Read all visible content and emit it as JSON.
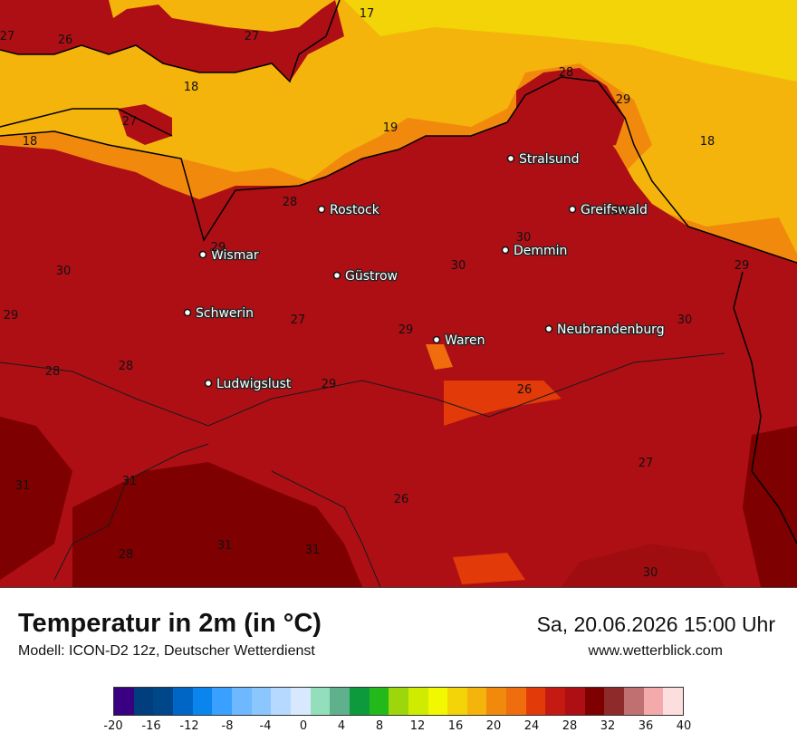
{
  "map": {
    "cities": [
      {
        "name": "Stralsund"
      },
      {
        "name": "Rostock"
      },
      {
        "name": "Greifswald"
      },
      {
        "name": "Wismar"
      },
      {
        "name": "Demmin"
      },
      {
        "name": "Güstrow"
      },
      {
        "name": "Schwerin"
      },
      {
        "name": "Neubrandenburg"
      },
      {
        "name": "Waren"
      },
      {
        "name": "Ludwigslust"
      }
    ],
    "iso_labels": [
      "27",
      "26",
      "27",
      "17",
      "18",
      "28",
      "29",
      "27",
      "18",
      "19",
      "18",
      "28",
      "30",
      "30",
      "29",
      "29",
      "30",
      "27",
      "29",
      "30",
      "29",
      "28",
      "28",
      "29",
      "26",
      "30",
      "31",
      "31",
      "27",
      "26",
      "31",
      "31",
      "28",
      "30"
    ]
  },
  "footer": {
    "title": "Temperatur in 2m (in °C)",
    "model": "Modell: ICON-D2 12z, Deutscher Wetterdienst",
    "datetime": "Sa, 20.06.2026 15:00 Uhr",
    "site": "www.wetterblick.com"
  },
  "legend": {
    "colors": [
      "#3a0082",
      "#003e7d",
      "#00478a",
      "#0066c6",
      "#0a85ee",
      "#3aa0ff",
      "#6eb8ff",
      "#8cc6ff",
      "#b5d9ff",
      "#d7e8ff",
      "#94dfbb",
      "#5fb18d",
      "#0d9a3c",
      "#23b91b",
      "#9dd70b",
      "#cfeb00",
      "#f2f800",
      "#f2d408",
      "#f4b40c",
      "#f18a0c",
      "#ef6d0d",
      "#e23a09",
      "#c41a12",
      "#ad0f15",
      "#7f0000",
      "#8f2a2a",
      "#c07070",
      "#f4aaaa",
      "#fddede"
    ],
    "ticks": [
      "-20",
      "-16",
      "-12",
      "-8",
      "-4",
      "0",
      "4",
      "8",
      "12",
      "16",
      "20",
      "24",
      "28",
      "32",
      "36",
      "40"
    ]
  },
  "colors": {
    "t17": "#f2d408",
    "t18": "#f4b40c",
    "t20": "#f18a0c",
    "t24": "#e23a09",
    "t26": "#c41a12",
    "t28": "#ad0f15",
    "t30": "#7f0000"
  }
}
